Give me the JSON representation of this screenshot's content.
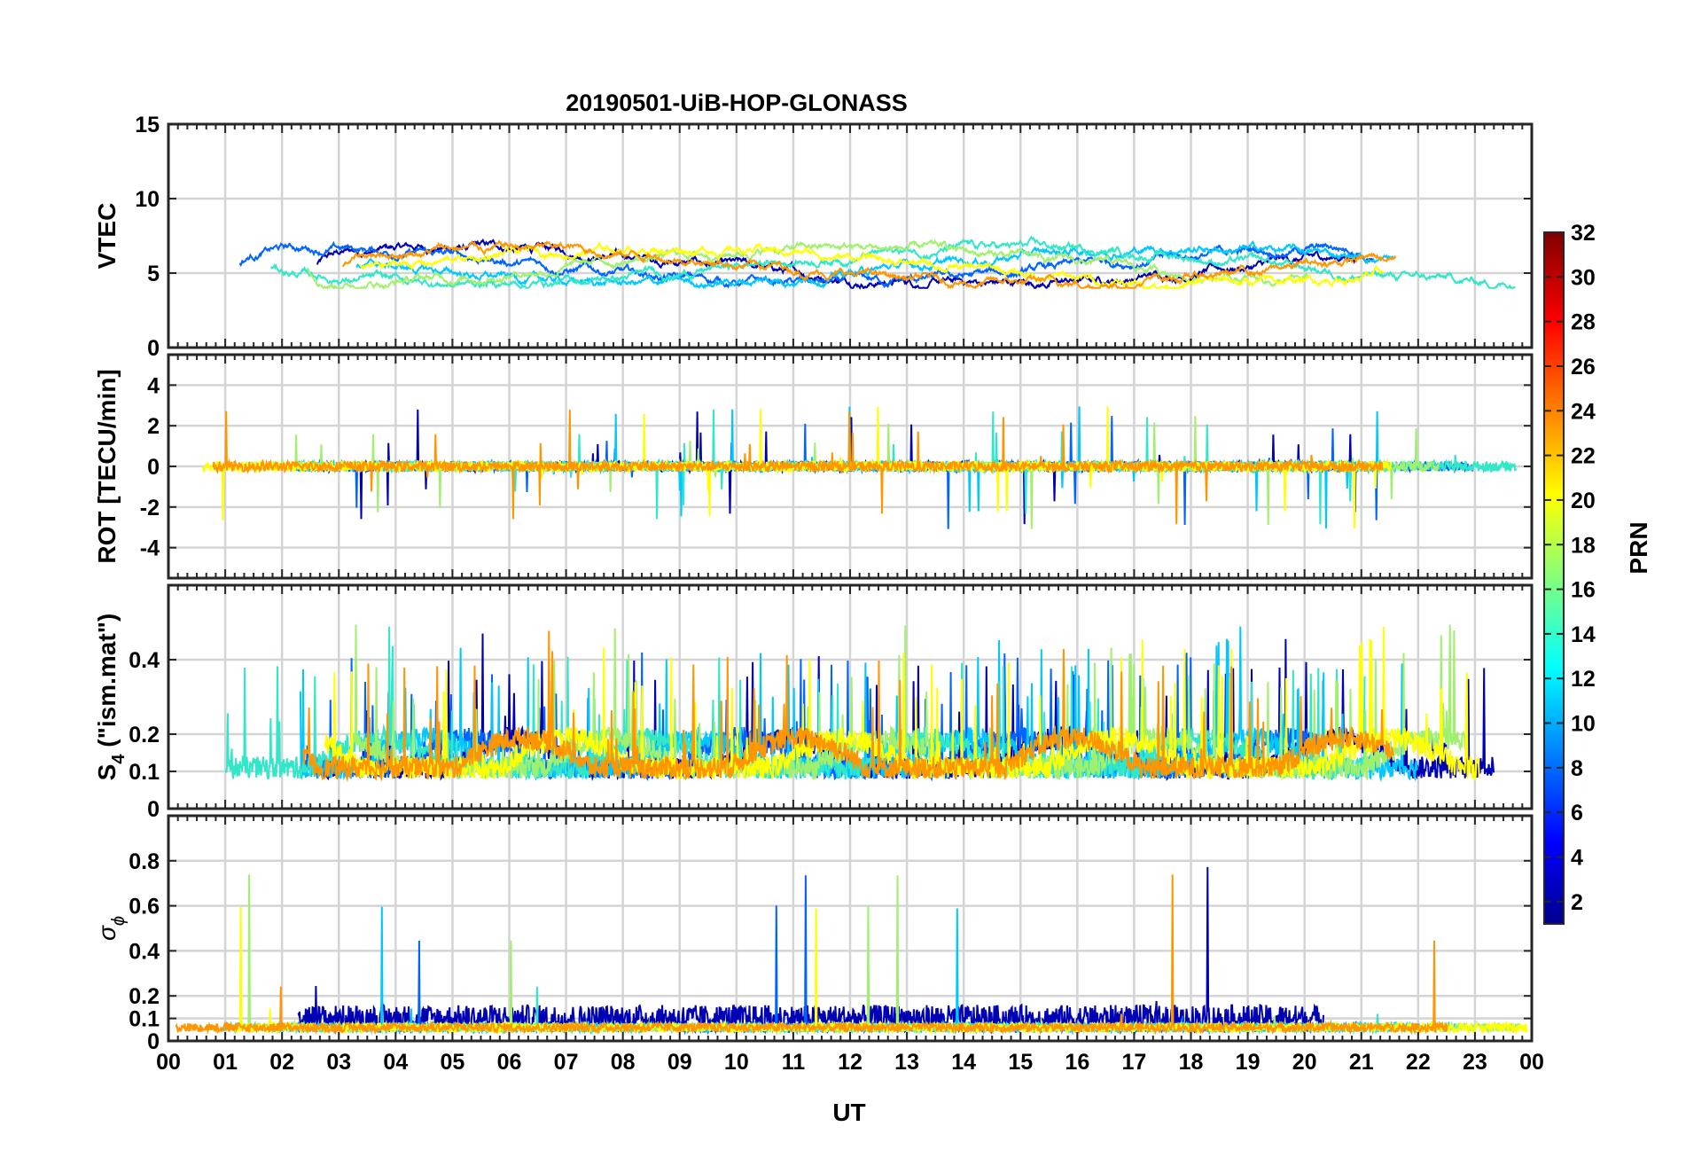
{
  "chart_data": {
    "type": "line",
    "title": "20190501-UiB-HOP-GLONASS",
    "xlabel": "UT",
    "x_range": [
      0,
      24
    ],
    "x_tick_labels": [
      "00",
      "01",
      "02",
      "03",
      "04",
      "05",
      "06",
      "07",
      "08",
      "09",
      "10",
      "11",
      "12",
      "13",
      "14",
      "15",
      "16",
      "17",
      "18",
      "19",
      "20",
      "21",
      "22",
      "23",
      "00"
    ],
    "grid": true,
    "panels": [
      {
        "id": "vtec",
        "ylabel": "VTEC",
        "ylim": [
          0,
          15
        ],
        "y_ticks": [
          0,
          5,
          10,
          15
        ],
        "y_tick_labels": [
          "0",
          "5",
          "10",
          "15"
        ],
        "baseline": 5.5,
        "typical_range": [
          4,
          9
        ]
      },
      {
        "id": "rot",
        "ylabel": "ROT [TECU/min]",
        "ylim": [
          -5.5,
          5.5
        ],
        "y_ticks": [
          -4,
          -2,
          0,
          2,
          4
        ],
        "y_tick_labels": [
          "-4",
          "-2",
          "0",
          "2",
          "4"
        ],
        "baseline": 0,
        "typical_range": [
          -4.3,
          4.3
        ]
      },
      {
        "id": "s4",
        "ylabel_main": "S",
        "ylabel_sub": "4",
        "ylabel_rest": " (\"ism.mat\")",
        "ylim": [
          0,
          0.6
        ],
        "y_ticks": [
          0,
          0.1,
          0.2,
          0.4
        ],
        "y_tick_labels": [
          "0",
          "0.1",
          "0.2",
          "0.4"
        ],
        "baseline": 0.08,
        "typical_range": [
          0.04,
          0.6
        ]
      },
      {
        "id": "sigma_phi",
        "ylabel_main": "σ",
        "ylabel_sub": "ϕ",
        "ylim": [
          0,
          1
        ],
        "y_ticks": [
          0,
          0.1,
          0.2,
          0.4,
          0.6,
          0.8
        ],
        "y_tick_labels": [
          "0",
          "0.1",
          "0.2",
          "0.4",
          "0.6",
          "0.8"
        ],
        "baseline": 0.04,
        "typical_range": [
          0,
          1
        ]
      }
    ],
    "colorbar": {
      "label": "PRN",
      "range": [
        1,
        32
      ],
      "ticks": [
        2,
        4,
        6,
        8,
        10,
        12,
        14,
        16,
        18,
        20,
        22,
        24,
        26,
        28,
        30,
        32
      ],
      "tick_labels": [
        "2",
        "4",
        "6",
        "8",
        "10",
        "12",
        "14",
        "16",
        "18",
        "20",
        "22",
        "24",
        "26",
        "28",
        "30",
        "32"
      ],
      "colormap": "jet"
    },
    "series_colors": {
      "PRN 2": "#0000b4",
      "PRN 8": "#0064ff",
      "PRN 11": "#00c8ff",
      "PRN 14": "#32e6c8",
      "PRN 17": "#a0f06e",
      "PRN 20": "#ffff00",
      "PRN 23": "#ff9600"
    }
  }
}
